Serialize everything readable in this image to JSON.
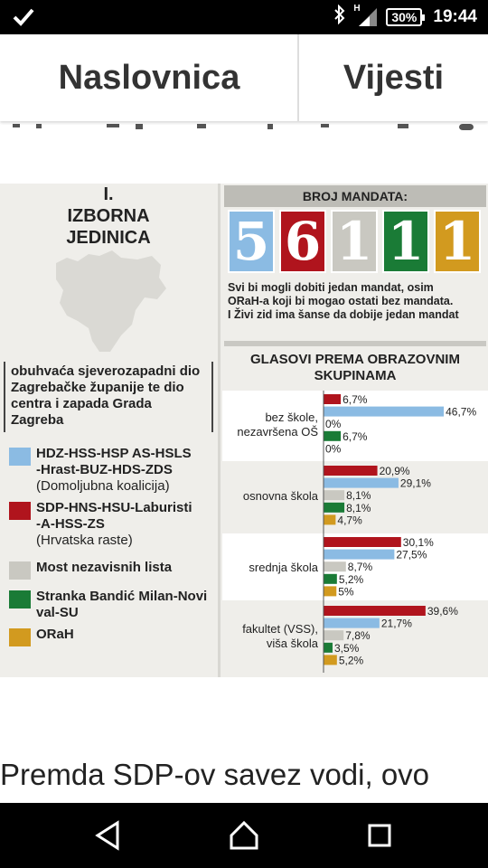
{
  "status_bar": {
    "battery": "30%",
    "time": "19:44",
    "network": "H",
    "icons": [
      "check-icon",
      "bluetooth-icon",
      "signal-icon",
      "battery-icon"
    ]
  },
  "tabs": [
    {
      "label": "Naslovnica"
    },
    {
      "label": "Vijesti"
    }
  ],
  "infographic": {
    "section_number": "I.",
    "section_title_1": "IZBORNA",
    "section_title_2": "JEDINICA",
    "description": "obuhvaća sjeverozapadni dio Zagrebačke županije te dio centra i zapada Grada Zagreba",
    "legend": [
      {
        "line1": "HDZ-HSS-HSP AS-HSLS",
        "line2": "-Hrast-BUZ-HDS-ZDS",
        "sub": "(Domoljubna koalicija)",
        "color": "#8bbbe3"
      },
      {
        "line1": "SDP-HNS-HSU-Laburisti",
        "line2": "-A-HSS-ZS",
        "sub": "(Hrvatska raste)",
        "color": "#b0141d"
      },
      {
        "line1": "Most nezavisnih lista",
        "line2": "",
        "sub": "",
        "color": "#c9c8c1"
      },
      {
        "line1": "Stranka Bandić Milan-Novi",
        "line2": "val-SU",
        "sub": "",
        "color": "#1a7b36"
      },
      {
        "line1": "ORaH",
        "line2": "",
        "sub": "",
        "color": "#d29a1f"
      }
    ],
    "mandates_title": "BROJ MANDATA:",
    "mandates": [
      {
        "value": "5",
        "color": "#8bbbe3"
      },
      {
        "value": "6",
        "color": "#b0141d"
      },
      {
        "value": "1",
        "color": "#c9c8c1"
      },
      {
        "value": "1",
        "color": "#1a7b36"
      },
      {
        "value": "1",
        "color": "#d29a1f"
      }
    ],
    "note_lines": [
      "Svi bi mogli dobiti jedan mandat, osim",
      "ORaH-a koji bi mogao ostati bez mandata.",
      "I Živi zid ima šanse da dobije jedan mandat"
    ],
    "votes_title_1": "GLASOVI PREMA OBRAZOVNIM",
    "votes_title_2": "SKUPINAMA"
  },
  "chart_data": {
    "type": "bar",
    "title": "GLASOVI PREMA OBRAZOVNIM SKUPINAMA",
    "orientation": "horizontal",
    "categories": [
      [
        "bez škole,",
        "nezavršena OŠ"
      ],
      [
        "osnovna škola"
      ],
      [
        "srednja škola"
      ],
      [
        "fakultet (VSS),",
        "viša škola"
      ]
    ],
    "series_colors": [
      "#b0141d",
      "#8bbbe3",
      "#c9c8c1",
      "#1a7b36",
      "#d29a1f"
    ],
    "series": [
      {
        "name": "SDP-HNS-HSU-Laburisti-A-HSS-ZS",
        "values": [
          6.7,
          20.9,
          30.1,
          39.6
        ]
      },
      {
        "name": "HDZ-HSS-HSP AS-HSLS-Hrast-BUZ-HDS-ZDS",
        "values": [
          46.7,
          29.1,
          27.5,
          21.7
        ]
      },
      {
        "name": "Most nezavisnih lista",
        "values": [
          0,
          8.1,
          8.7,
          7.8
        ]
      },
      {
        "name": "Stranka Bandić Milan-Novi val-SU",
        "values": [
          6.7,
          8.1,
          5.2,
          3.5
        ]
      },
      {
        "name": "ORaH",
        "values": [
          0,
          4.7,
          5,
          5.2
        ]
      }
    ],
    "value_labels": [
      [
        "6,7%",
        "46,7%",
        "0%",
        "6,7%",
        "0%"
      ],
      [
        "20,9%",
        "29,1%",
        "8,1%",
        "8,1%",
        "4,7%"
      ],
      [
        "30,1%",
        "27,5%",
        "8,7%",
        "5,2%",
        "5%"
      ],
      [
        "39,6%",
        "21,7%",
        "7,8%",
        "3,5%",
        "5,2%"
      ]
    ],
    "group_series": [
      [
        0,
        1,
        2,
        3,
        4
      ],
      [
        0,
        1,
        2,
        3,
        4
      ],
      [
        0,
        1,
        2,
        3,
        4
      ],
      [
        0,
        1,
        2,
        3,
        4
      ]
    ]
  },
  "article": {
    "text": "Premda SDP-ov savez vodi, ovo"
  }
}
